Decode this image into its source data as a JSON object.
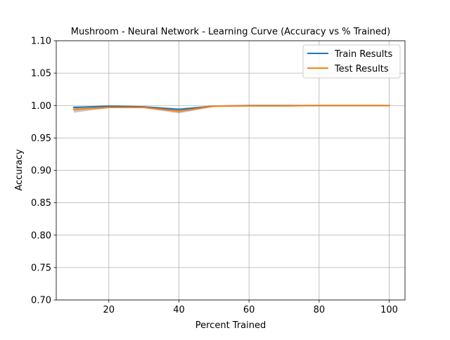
{
  "chart_data": {
    "type": "line",
    "title": "Mushroom - Neural Network - Learning Curve (Accuracy vs % Trained)",
    "xlabel": "Percent Trained",
    "ylabel": "Accuracy",
    "xlim": [
      5,
      104.5
    ],
    "ylim": [
      0.7,
      1.1
    ],
    "xticks": [
      20,
      40,
      60,
      80,
      100
    ],
    "xtick_labels": [
      "20",
      "40",
      "60",
      "80",
      "100"
    ],
    "yticks": [
      0.7,
      0.75,
      0.8,
      0.85,
      0.9,
      0.95,
      1.0,
      1.05,
      1.1
    ],
    "ytick_labels": [
      "0.70",
      "0.75",
      "0.80",
      "0.85",
      "0.90",
      "0.95",
      "1.00",
      "1.05",
      "1.10"
    ],
    "grid": true,
    "legend_position": "top-right",
    "x": [
      10,
      20,
      30,
      40,
      50,
      60,
      70,
      80,
      90,
      100
    ],
    "series": [
      {
        "name": "Train Results",
        "color": "#1f77b4",
        "values": [
          0.997,
          0.999,
          0.998,
          0.994,
          0.999,
          1.0,
          1.0,
          1.0,
          1.0,
          1.0
        ],
        "band_lower": [
          0.996,
          0.998,
          0.997,
          0.992,
          0.999,
          1.0,
          1.0,
          1.0,
          1.0,
          1.0
        ],
        "band_upper": [
          0.998,
          1.0,
          0.999,
          0.996,
          1.0,
          1.0,
          1.0,
          1.0,
          1.0,
          1.0
        ]
      },
      {
        "name": "Test Results",
        "color": "#ff7f0e",
        "values": [
          0.994,
          0.997,
          0.997,
          0.991,
          0.999,
          0.9995,
          0.9995,
          1.0,
          1.0,
          1.0
        ],
        "band_lower": [
          0.989,
          0.996,
          0.996,
          0.988,
          0.998,
          0.999,
          0.999,
          1.0,
          1.0,
          1.0
        ],
        "band_upper": [
          0.999,
          0.998,
          0.998,
          0.994,
          1.0,
          1.0,
          1.0,
          1.0,
          1.0,
          1.0
        ]
      }
    ]
  }
}
